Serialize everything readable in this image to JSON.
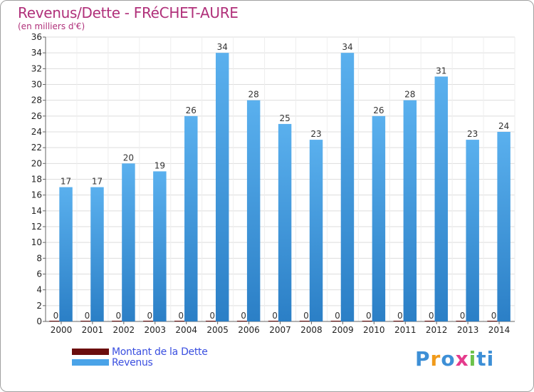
{
  "title": "Revenus/Dette - FRéCHET-AURE",
  "subtitle": "(en milliers d'€)",
  "logo": {
    "text": "Proxiti",
    "letters": [
      "P",
      "r",
      "o",
      "x",
      "i",
      "t",
      "i"
    ],
    "colors": [
      "#3d8fd6",
      "#f09a1a",
      "#3d8fd6",
      "#e53b8c",
      "#6cc24a",
      "#3d8fd6",
      "#3d8fd6"
    ]
  },
  "legend": [
    {
      "label": "Montant de la Dette",
      "color": "#6b0d0d"
    },
    {
      "label": "Revenus",
      "color": "#4aa3e8"
    }
  ],
  "chart_data": {
    "type": "bar",
    "title": "Revenus/Dette - FRéCHET-AURE",
    "ylabel": "(en milliers d'€)",
    "xlabel": "",
    "ylim": [
      0,
      36
    ],
    "yticks": [
      0,
      2,
      4,
      6,
      8,
      10,
      12,
      14,
      16,
      18,
      20,
      22,
      24,
      26,
      28,
      30,
      32,
      34,
      36
    ],
    "grid": true,
    "categories": [
      "2000",
      "2001",
      "2002",
      "2003",
      "2004",
      "2005",
      "2006",
      "2007",
      "2008",
      "2009",
      "2010",
      "2011",
      "2012",
      "2013",
      "2014"
    ],
    "series": [
      {
        "name": "Montant de la Dette",
        "color": "#6b0d0d",
        "values": [
          0,
          0,
          0,
          0,
          0,
          0,
          0,
          0,
          0,
          0,
          0,
          0,
          0,
          0,
          0
        ]
      },
      {
        "name": "Revenus",
        "color": "#4aa3e8",
        "values": [
          17,
          17,
          20,
          19,
          26,
          34,
          28,
          25,
          23,
          34,
          26,
          28,
          31,
          23,
          24
        ]
      }
    ]
  }
}
